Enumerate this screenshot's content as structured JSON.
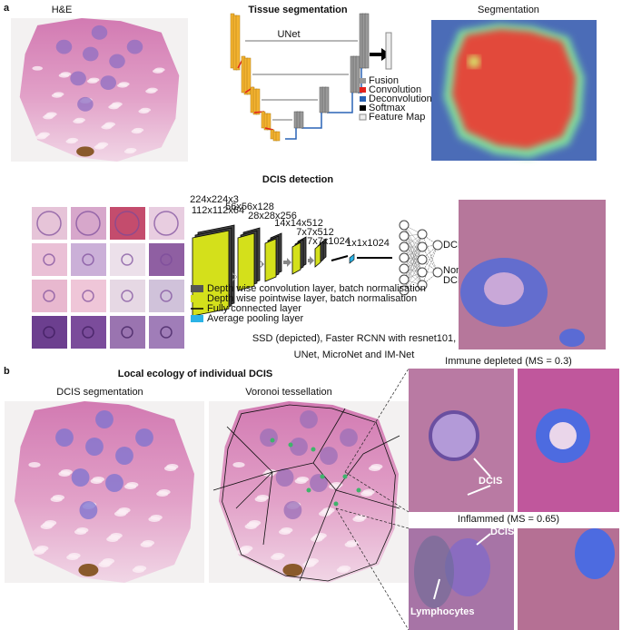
{
  "panel_a": {
    "label": "a",
    "he_title": "H&E",
    "tissue_title": "Tissue segmentation",
    "unet_title": "UNet",
    "seg_title": "Segmentation",
    "unet_legend": [
      "Fusion",
      "Convolution",
      "Deconvolution",
      "Softmax",
      "Feature Map"
    ],
    "dcis_title": "DCIS detection",
    "layers": [
      "224x224x3",
      "112x112x64",
      "56x56x128",
      "28x28x256",
      "14x14x512",
      "7x7x512",
      "7x7x1024",
      "1x1x1024"
    ],
    "outputs": [
      "DCIS",
      [
        "Non",
        "DCIS"
      ]
    ],
    "legend": [
      "Depth wise convolution layer, batch normalisation",
      "Depth wise pointwise layer, batch normalisation",
      "Fully connected layer",
      "Average pooling layer"
    ],
    "methods": [
      "SSD (depicted), Faster RCNN with resnet101,",
      "UNet, MicroNet and IM-Net"
    ]
  },
  "panel_b": {
    "label": "b",
    "title": "Local ecology of individual DCIS",
    "seg_title": "DCIS segmentation",
    "voronoi_title": "Voronoi tessellation",
    "immune_depleted": "Immune depleted (MS = 0.3)",
    "inflamed": "Inflammed (MS = 0.65)",
    "annotations": [
      "DCIS",
      "DCIS",
      "Lymphocytes"
    ]
  }
}
